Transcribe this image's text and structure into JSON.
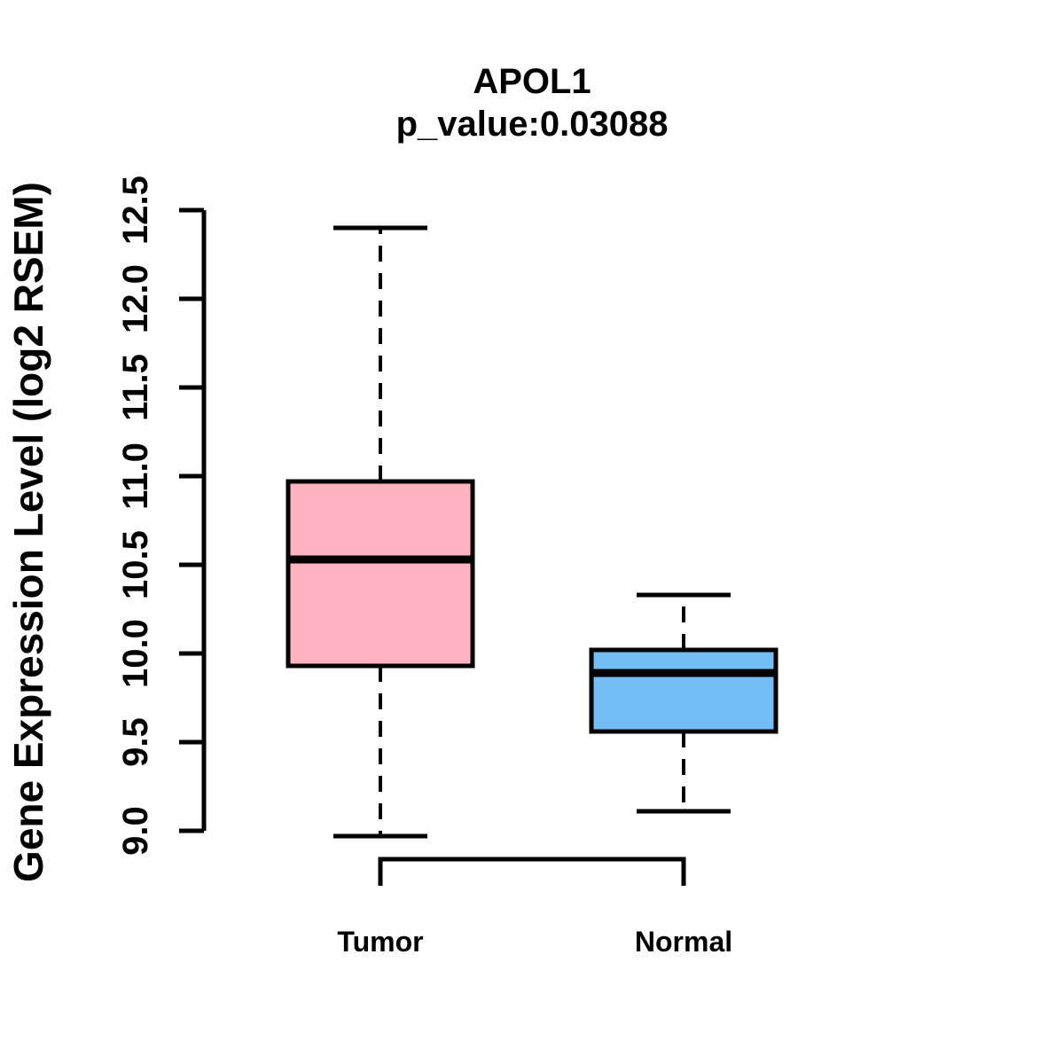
{
  "title": "APOL1",
  "subtitle": "p_value:0.03088",
  "chart_data": {
    "type": "boxplot",
    "title": "APOL1",
    "subtitle": "p_value:0.03088",
    "ylabel": "Gene Expression Level (log2 RSEM)",
    "ylim": [
      9.0,
      12.5
    ],
    "yticks": [
      9.0,
      9.5,
      10.0,
      10.5,
      11.0,
      11.5,
      12.0,
      12.5
    ],
    "grid": false,
    "categories": [
      "Tumor",
      "Normal"
    ],
    "series": [
      {
        "name": "Tumor",
        "fill_color": "#FFB3C1",
        "border_color": "#000000",
        "whisker_low": 8.97,
        "q1": 9.93,
        "median": 10.53,
        "q3": 10.97,
        "whisker_high": 12.4
      },
      {
        "name": "Normal",
        "fill_color": "#74BEF8",
        "border_color": "#000000",
        "whisker_low": 9.11,
        "q1": 9.56,
        "median": 9.89,
        "q3": 10.02,
        "whisker_high": 10.33
      }
    ],
    "comparison_bracket": {
      "from": "Tumor",
      "to": "Normal"
    }
  },
  "colors": {
    "tumor_fill": "#FFB3C1",
    "normal_fill": "#74BEF8",
    "line": "#000000",
    "background": "#ffffff"
  }
}
